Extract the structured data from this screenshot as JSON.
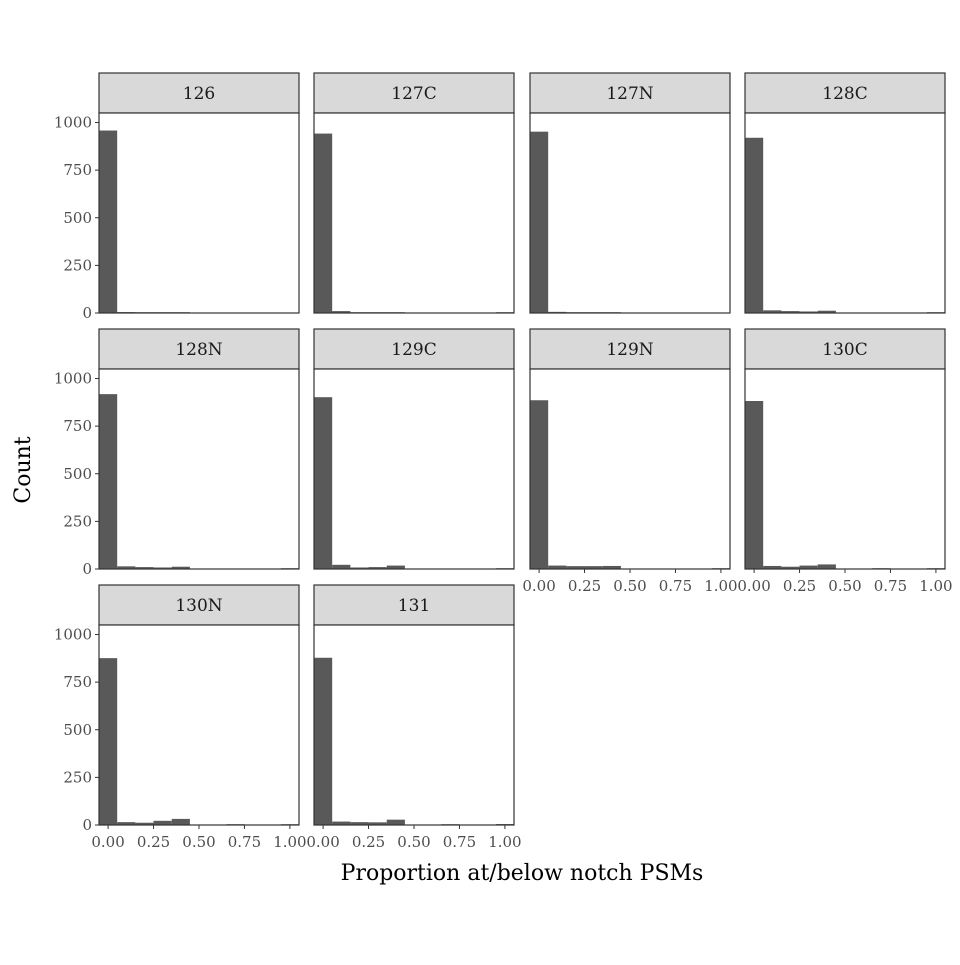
{
  "chart_data": {
    "type": "bar",
    "subtype": "faceted-histogram",
    "xlabel": "Proportion at/below notch PSMs",
    "ylabel": "Count",
    "xlim": [
      -0.05,
      1.05
    ],
    "ylim": [
      0,
      1050
    ],
    "x_ticks": [
      0,
      0.25,
      0.5,
      0.75,
      1.0
    ],
    "x_tick_labels": [
      "0.00",
      "0.25",
      "0.50",
      "0.75",
      "1.00"
    ],
    "y_ticks": [
      0,
      250,
      500,
      750,
      1000
    ],
    "y_tick_labels": [
      "0",
      "250",
      "500",
      "750",
      "1000"
    ],
    "bin_width": 0.1,
    "bin_centers": [
      0,
      0.1,
      0.2,
      0.3,
      0.4,
      0.5,
      0.6,
      0.7,
      0.8,
      0.9,
      1.0
    ],
    "grid": false,
    "colors": {
      "bar": "#595959",
      "strip_fill": "#d9d9d9",
      "panel_border": "#333333"
    },
    "facets": [
      {
        "label": "126",
        "values": [
          958,
          5,
          1,
          3,
          3,
          0,
          0,
          0,
          0,
          0,
          0
        ]
      },
      {
        "label": "127C",
        "values": [
          942,
          10,
          3,
          3,
          2,
          0,
          0,
          0,
          0,
          0,
          1
        ]
      },
      {
        "label": "127N",
        "values": [
          952,
          6,
          2,
          2,
          3,
          0,
          0,
          0,
          0,
          0,
          0
        ]
      },
      {
        "label": "128C",
        "values": [
          920,
          14,
          10,
          8,
          12,
          0,
          0,
          0,
          0,
          0,
          1
        ]
      },
      {
        "label": "128N",
        "values": [
          918,
          14,
          10,
          8,
          12,
          0,
          0,
          0,
          0,
          0,
          1
        ]
      },
      {
        "label": "129C",
        "values": [
          902,
          22,
          8,
          10,
          18,
          0,
          0,
          0,
          0,
          0,
          1
        ]
      },
      {
        "label": "129N",
        "values": [
          886,
          18,
          15,
          15,
          16,
          0,
          0,
          0,
          0,
          0,
          3
        ]
      },
      {
        "label": "130C",
        "values": [
          882,
          16,
          12,
          18,
          24,
          0,
          0,
          1,
          0,
          0,
          4
        ]
      },
      {
        "label": "130N",
        "values": [
          876,
          15,
          12,
          22,
          32,
          0,
          0,
          1,
          0,
          0,
          4
        ]
      },
      {
        "label": "131",
        "values": [
          878,
          18,
          15,
          14,
          28,
          0,
          0,
          1,
          0,
          0,
          5
        ]
      }
    ]
  }
}
